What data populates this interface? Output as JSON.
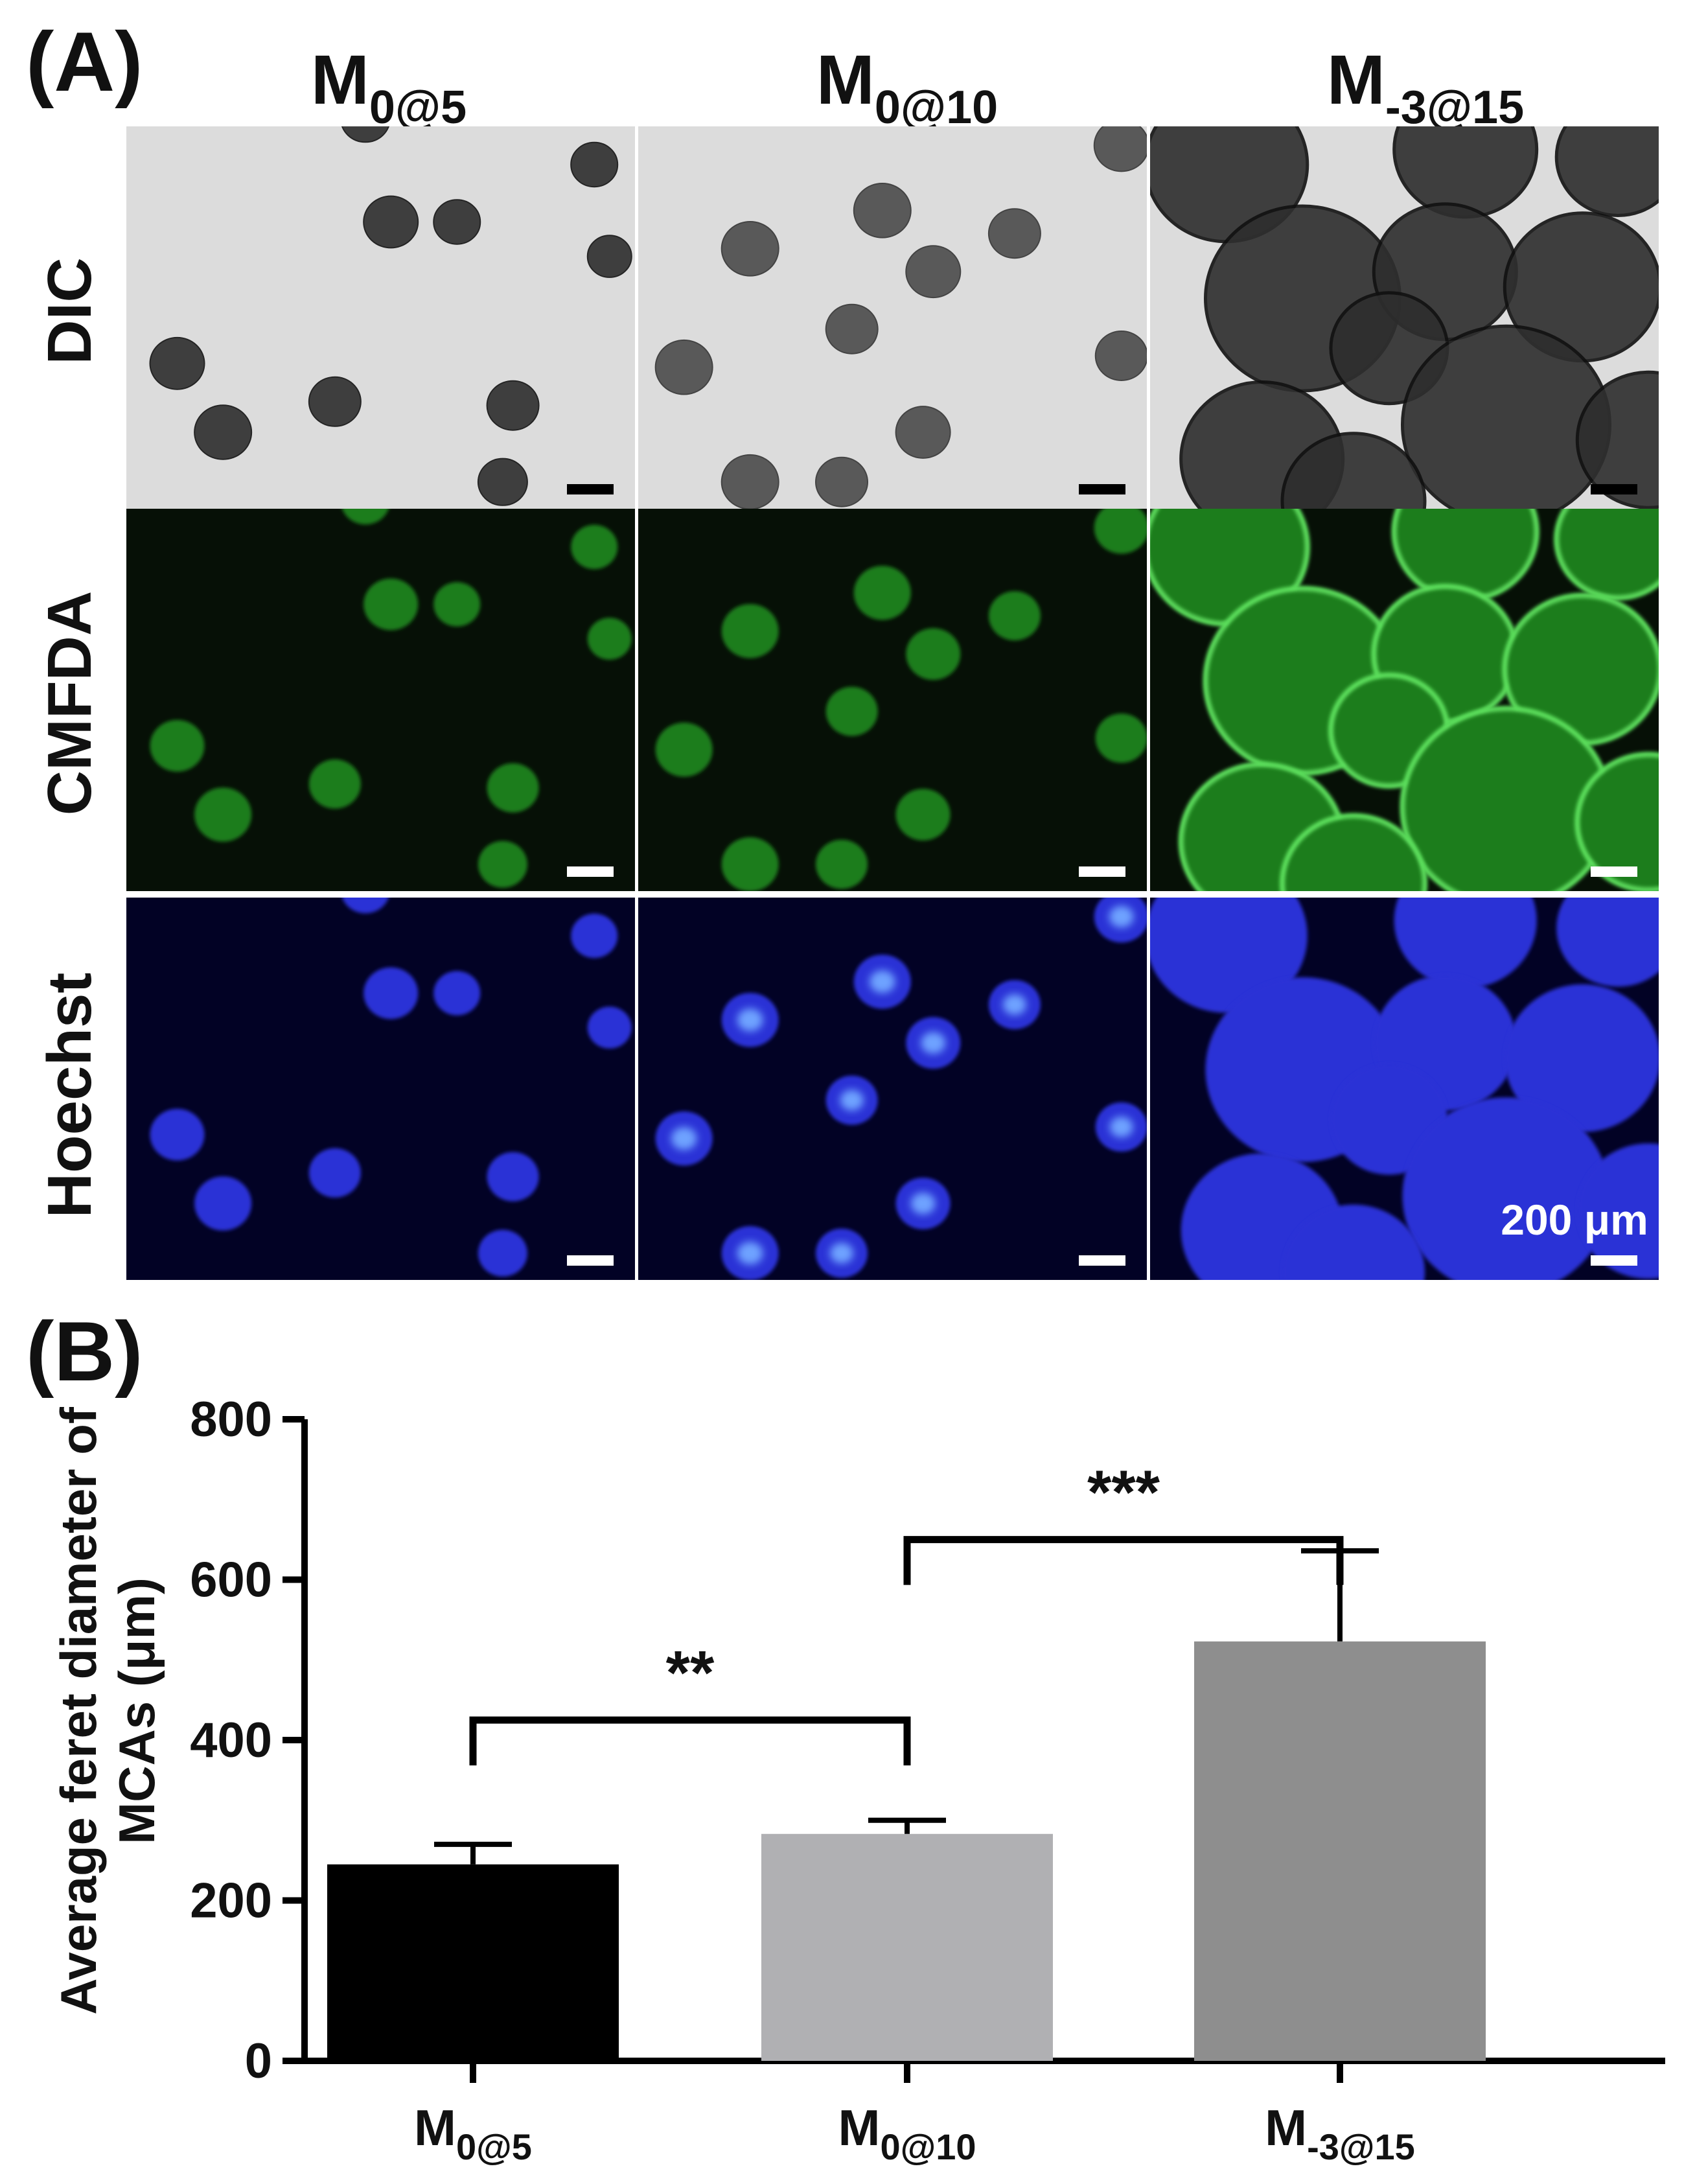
{
  "panel_a": {
    "label": "(A)",
    "columns": [
      {
        "main": "M",
        "sub": "0@5"
      },
      {
        "main": "M",
        "sub": "0@10"
      },
      {
        "main": "M",
        "sub": "-3@15"
      }
    ],
    "rows": [
      {
        "label": "DIC",
        "kind": "dic",
        "bg": "#dcdcdc",
        "cell": "#2e2e2e",
        "bar_color": "#000000"
      },
      {
        "label": "CMFDA",
        "kind": "cmfda",
        "bg": "#061006",
        "cell": "#1f7d1f",
        "bar_color": "#ffffff"
      },
      {
        "label": "Hoechst",
        "kind": "hoechst",
        "bg": "#020225",
        "cell": "#2b33d6",
        "bar_color": "#ffffff"
      }
    ],
    "scale_bar_label": "200 μm"
  },
  "panel_b": {
    "label": "(B)",
    "chart_data": {
      "type": "bar",
      "categories": [
        {
          "main": "M",
          "sub": "0@5"
        },
        {
          "main": "M",
          "sub": "0@10"
        },
        {
          "main": "M",
          "sub": "-3@15"
        }
      ],
      "values": [
        245,
        283,
        523
      ],
      "errors": [
        25,
        17,
        113
      ],
      "colors": [
        "#000000",
        "#b0b0b3",
        "#8e8e8e"
      ],
      "ylim": [
        0,
        800
      ],
      "yticks": [
        "0",
        "200",
        "400",
        "600",
        "800"
      ],
      "ylabel_lines": [
        "Average feret diameter of",
        "MCAs  (μm)"
      ],
      "significance": [
        {
          "from": 0,
          "to": 1,
          "label": "**",
          "bracket_y": 425
        },
        {
          "from": 1,
          "to": 2,
          "label": "***",
          "bracket_y": 650
        }
      ]
    }
  }
}
